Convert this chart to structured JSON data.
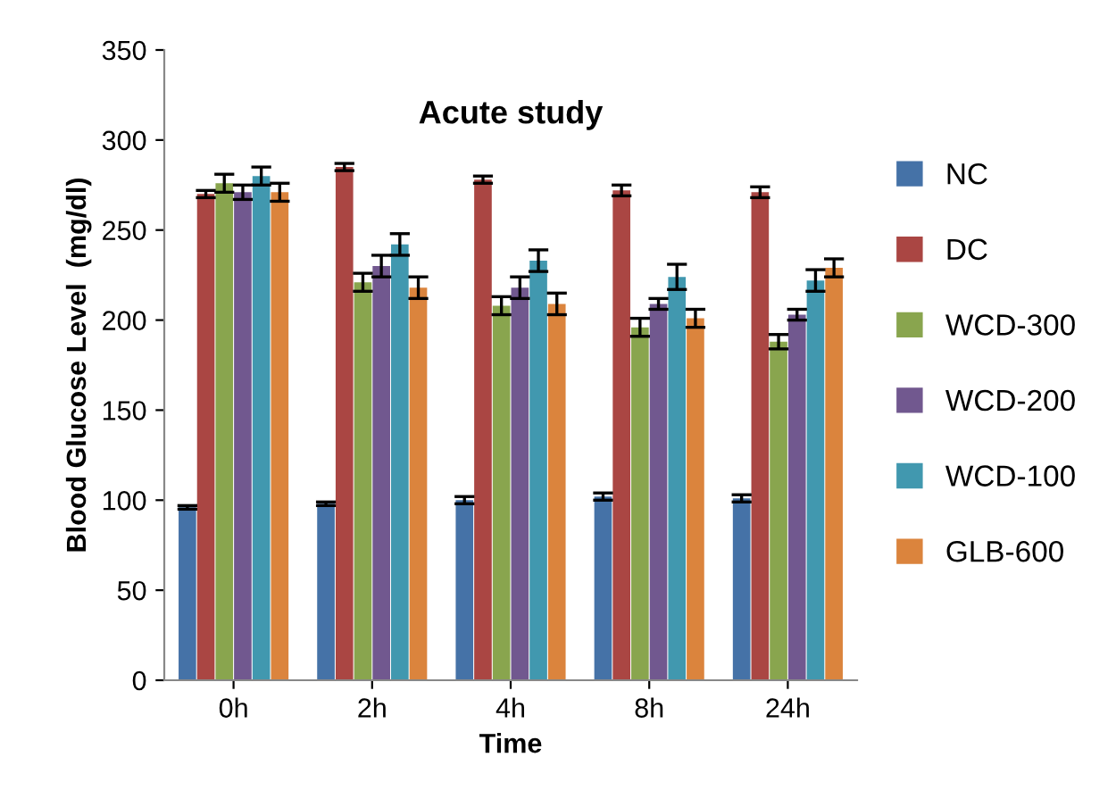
{
  "chart_data": {
    "type": "bar",
    "title": "Acute study",
    "xlabel": "Time",
    "ylabel": "Blood Glucose Level  (mg/dl)",
    "categories": [
      "0h",
      "2h",
      "4h",
      "8h",
      "24h"
    ],
    "series": [
      {
        "name": "NC",
        "color": "#4572a7",
        "values": [
          96,
          98,
          100,
          102,
          101
        ],
        "errors": [
          1,
          1,
          2,
          2,
          2
        ]
      },
      {
        "name": "DC",
        "color": "#aa4643",
        "values": [
          270,
          285,
          278,
          272,
          271
        ],
        "errors": [
          2,
          2,
          2,
          3,
          3
        ]
      },
      {
        "name": "WCD-300",
        "color": "#89a54e",
        "values": [
          276,
          221,
          208,
          196,
          188
        ],
        "errors": [
          5,
          5,
          5,
          5,
          4
        ]
      },
      {
        "name": "WCD-200",
        "color": "#71588f",
        "values": [
          271,
          230,
          218,
          209,
          203
        ],
        "errors": [
          4,
          6,
          6,
          3,
          3
        ]
      },
      {
        "name": "WCD-100",
        "color": "#4198af",
        "values": [
          280,
          242,
          233,
          224,
          222
        ],
        "errors": [
          5,
          6,
          6,
          7,
          6
        ]
      },
      {
        "name": "GLB-600",
        "color": "#db843d",
        "values": [
          271,
          218,
          209,
          201,
          229
        ],
        "errors": [
          5,
          6,
          6,
          5,
          5
        ]
      }
    ],
    "ylim": [
      0,
      350
    ],
    "yticks": [
      0,
      50,
      100,
      150,
      200,
      250,
      300,
      350
    ],
    "grid": false,
    "legend": "right"
  }
}
